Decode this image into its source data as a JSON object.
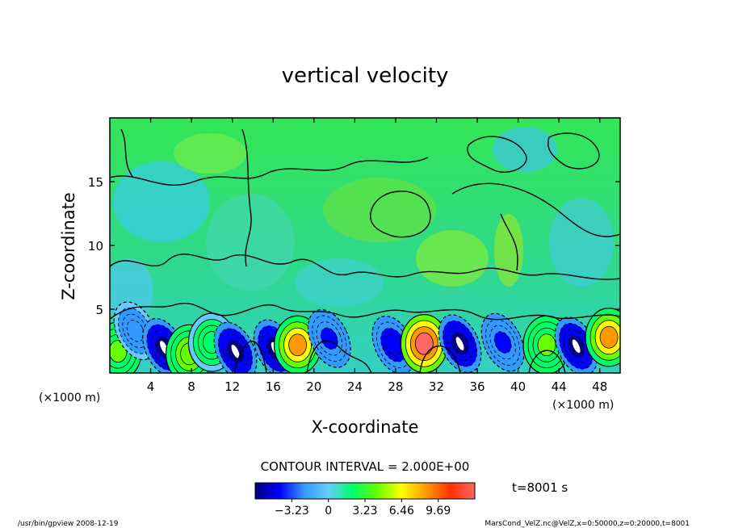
{
  "chart_data": {
    "type": "heatmap",
    "title": "vertical velocity",
    "xlabel": "X-coordinate",
    "ylabel": "Z-coordinate",
    "x_unit": "(×1000 m)",
    "z_unit": "(×1000 m)",
    "xlim": [
      0,
      50
    ],
    "ylim": [
      0,
      20
    ],
    "x_ticks": [
      4,
      8,
      12,
      16,
      20,
      24,
      28,
      32,
      36,
      40,
      44,
      48
    ],
    "x_tick_labels": [
      "4",
      "8",
      "12",
      "16",
      "20",
      "24",
      "28",
      "32",
      "36",
      "40",
      "44",
      "48"
    ],
    "y_ticks": [
      5,
      10,
      15
    ],
    "y_tick_labels": [
      "5",
      "10",
      "15"
    ],
    "contour_interval_label": "CONTOUR INTERVAL = 2.000E+00",
    "time_label": "t=8001 s",
    "colorbar": {
      "range": [
        -6.46,
        12.92
      ],
      "tick_values": [
        -3.23,
        0,
        3.23,
        6.46,
        9.69
      ],
      "tick_labels": [
        "−3.23",
        "0",
        "3.23",
        "6.46",
        "9.69"
      ],
      "stops": [
        "#000080",
        "#0000ff",
        "#3399ff",
        "#66ccff",
        "#00ff66",
        "#66ff00",
        "#ffff00",
        "#ff9900",
        "#ff3300",
        "#ff6666"
      ]
    },
    "features": [
      {
        "x": 0.8,
        "z": 1.7,
        "w": 3.5,
        "kind": "up"
      },
      {
        "x": 2.5,
        "z": 3.3,
        "w": -3.0,
        "kind": "down"
      },
      {
        "x": 5.3,
        "z": 2.0,
        "w": -6.5,
        "kind": "down"
      },
      {
        "x": 7.8,
        "z": 1.5,
        "w": 5.0,
        "kind": "up"
      },
      {
        "x": 10.0,
        "z": 2.4,
        "w": 2.5,
        "kind": "up"
      },
      {
        "x": 12.3,
        "z": 1.7,
        "w": -6.5,
        "kind": "down"
      },
      {
        "x": 16.2,
        "z": 1.9,
        "w": -6.5,
        "kind": "down"
      },
      {
        "x": 18.4,
        "z": 2.2,
        "w": 9.0,
        "kind": "up"
      },
      {
        "x": 21.5,
        "z": 2.7,
        "w": -3.5,
        "kind": "down"
      },
      {
        "x": 27.8,
        "z": 2.2,
        "w": -5.0,
        "kind": "down"
      },
      {
        "x": 30.8,
        "z": 2.3,
        "w": 12.0,
        "kind": "up"
      },
      {
        "x": 34.3,
        "z": 2.3,
        "w": -6.5,
        "kind": "down"
      },
      {
        "x": 38.5,
        "z": 2.4,
        "w": -3.5,
        "kind": "down"
      },
      {
        "x": 42.8,
        "z": 2.2,
        "w": 4.0,
        "kind": "up"
      },
      {
        "x": 45.7,
        "z": 2.1,
        "w": -6.5,
        "kind": "down"
      },
      {
        "x": 48.9,
        "z": 2.8,
        "w": 9.0,
        "kind": "up"
      }
    ]
  },
  "footer": {
    "left": "/usr/bin/gpview   2008-12-19",
    "right": "MarsCond_VelZ.nc@VelZ,x=0:50000,z=0:20000,t=8001"
  }
}
